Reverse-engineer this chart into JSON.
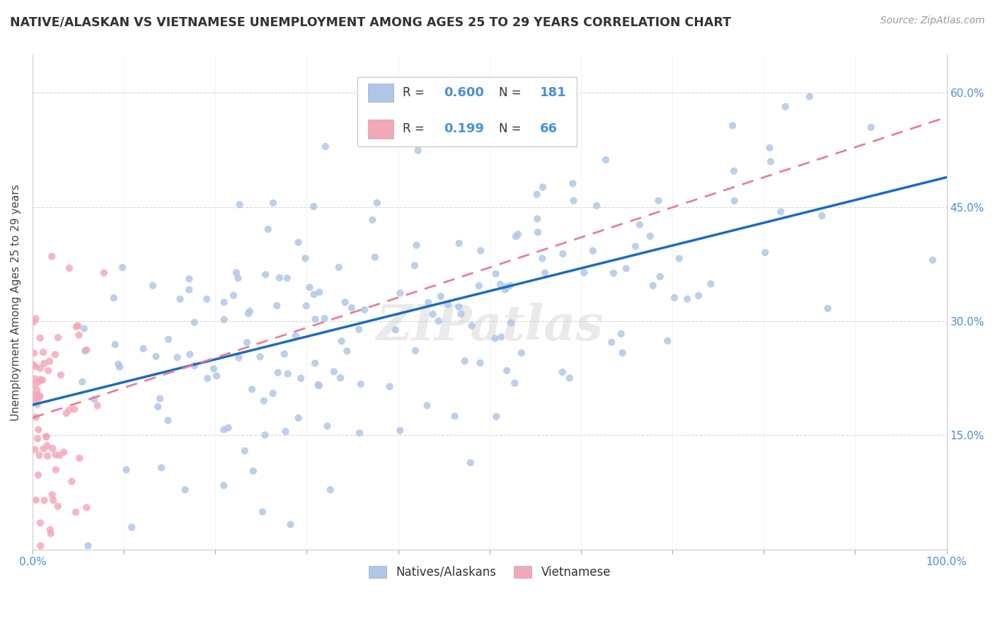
{
  "title": "NATIVE/ALASKAN VS VIETNAMESE UNEMPLOYMENT AMONG AGES 25 TO 29 YEARS CORRELATION CHART",
  "source": "Source: ZipAtlas.com",
  "ylabel": "Unemployment Among Ages 25 to 29 years",
  "xlim": [
    0.0,
    1.0
  ],
  "ylim": [
    0.0,
    0.65
  ],
  "xticks": [
    0.0,
    0.1,
    0.2,
    0.3,
    0.4,
    0.5,
    0.6,
    0.7,
    0.8,
    0.9,
    1.0
  ],
  "xticklabels": [
    "0.0%",
    "",
    "",
    "",
    "",
    "",
    "",
    "",
    "",
    "",
    "100.0%"
  ],
  "yticks": [
    0.0,
    0.15,
    0.3,
    0.45,
    0.6
  ],
  "yticklabels_right": [
    "",
    "15.0%",
    "30.0%",
    "45.0%",
    "60.0%"
  ],
  "native_R": 0.6,
  "native_N": 181,
  "viet_R": 0.199,
  "viet_N": 66,
  "native_color": "#aec6e8",
  "viet_color": "#f4a7b9",
  "native_line_color": "#1a6bbf",
  "viet_line_color": "#e87f97",
  "title_fontsize": 12.5,
  "source_fontsize": 10,
  "axis_label_fontsize": 11,
  "tick_fontsize": 11,
  "legend_fontsize": 12,
  "watermark": "ZIPatlas",
  "background_color": "#ffffff",
  "native_seed": 42,
  "viet_seed": 99
}
